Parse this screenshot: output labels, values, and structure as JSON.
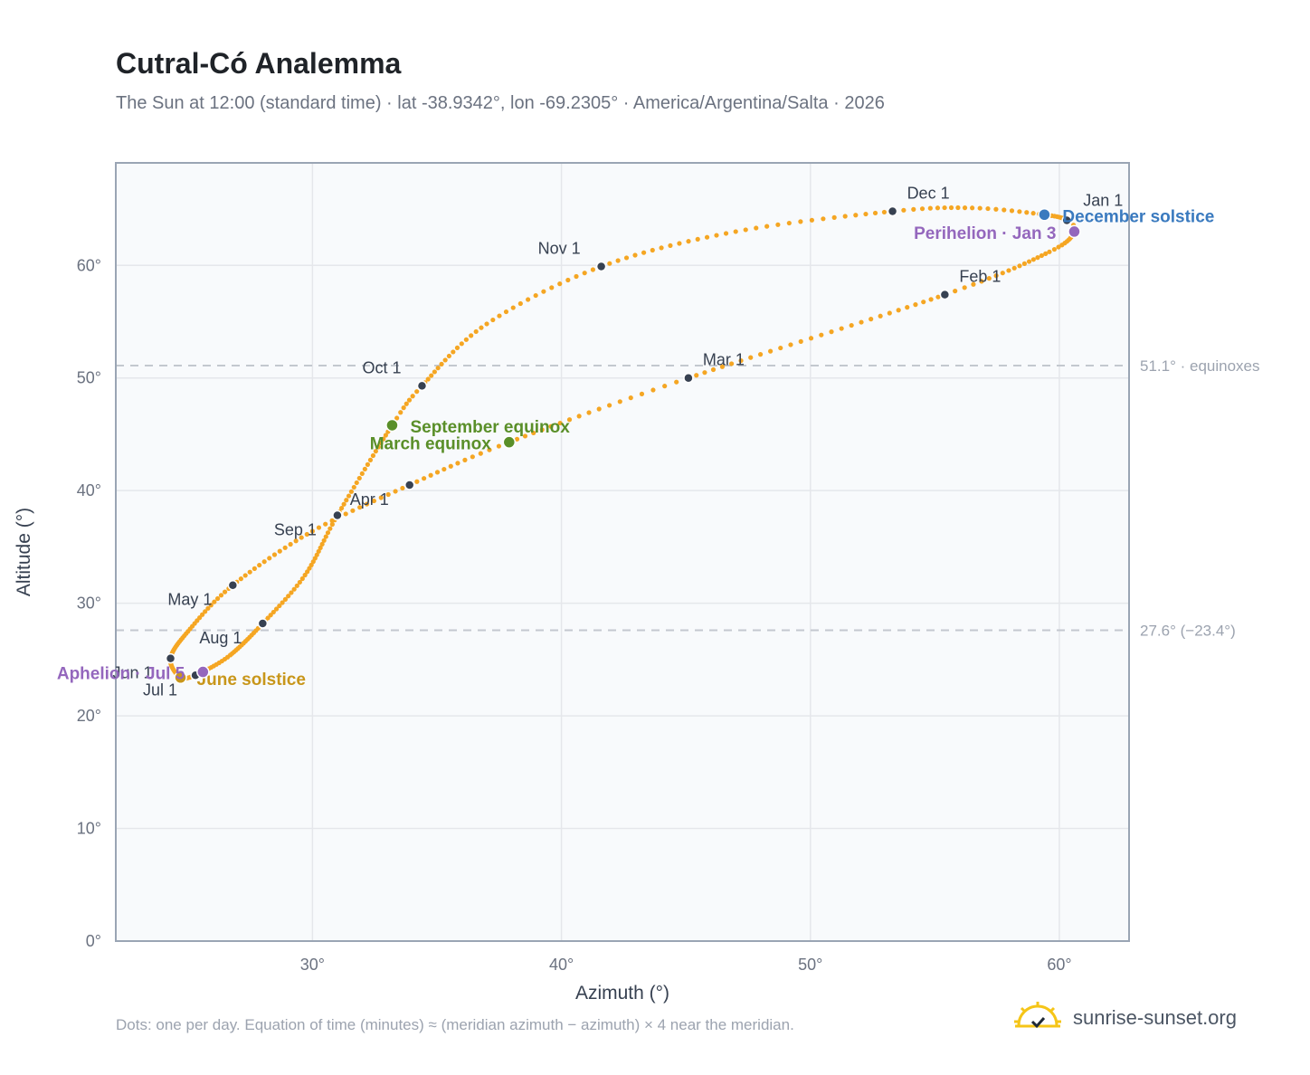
{
  "header": {
    "title": "Cutral-Có Analemma",
    "subtitle": "The Sun at 12:00 (standard time) · lat -38.9342°, lon -69.2305° · America/Argentina/Salta · 2026"
  },
  "footer": {
    "note": "Dots: one per day. Equation of time (minutes) ≈ (meridian azimuth − azimuth) × 4 near the meridian.",
    "brand": "sunrise-sunset.org",
    "brand_icon": "sun-horizon-check-icon"
  },
  "colors": {
    "path": "#f5a623",
    "month_marker": "#374151",
    "equinox": "#5a8f29",
    "december_solstice": "#3a7abf",
    "june_solstice": "#c8961a",
    "apsis": "#9467bd",
    "plot_bg": "#f8fafc",
    "grid": "#e5e7eb",
    "reference_line": "#c3c8cf"
  },
  "chart_data": {
    "type": "scatter",
    "title": "Cutral-Có Analemma",
    "xlabel": "Azimuth (°)",
    "ylabel": "Altitude (°)",
    "xlim": [
      22.1,
      62.8
    ],
    "ylim": [
      0,
      69.1
    ],
    "x_ticks": [
      30,
      40,
      50,
      60
    ],
    "x_tick_labels": [
      "30°",
      "40°",
      "50°",
      "60°"
    ],
    "y_ticks": [
      0,
      10,
      20,
      30,
      40,
      50,
      60
    ],
    "y_tick_labels": [
      "0°",
      "10°",
      "20°",
      "30°",
      "40°",
      "50°",
      "60°"
    ],
    "grid": true,
    "legend": "none",
    "reference_lines": [
      {
        "y": 51.1,
        "label": "51.1° · equinoxes"
      },
      {
        "y": 27.6,
        "label": "27.6° (−23.4°)"
      }
    ],
    "path_anchors": [
      {
        "day": 1,
        "az": 60.3,
        "alt": 64.0
      },
      {
        "day": 3,
        "az": 60.6,
        "alt": 63.0
      },
      {
        "day": 15,
        "az": 59.6,
        "alt": 61.2
      },
      {
        "day": 32,
        "az": 55.4,
        "alt": 57.4
      },
      {
        "day": 60,
        "az": 45.1,
        "alt": 50.0
      },
      {
        "day": 78,
        "az": 37.9,
        "alt": 44.3
      },
      {
        "day": 91,
        "az": 33.9,
        "alt": 40.5
      },
      {
        "day": 105,
        "az": 30.0,
        "alt": 36.4
      },
      {
        "day": 121,
        "az": 26.8,
        "alt": 31.6
      },
      {
        "day": 136,
        "az": 25.0,
        "alt": 27.5
      },
      {
        "day": 152,
        "az": 24.3,
        "alt": 25.1
      },
      {
        "day": 172,
        "az": 24.7,
        "alt": 23.4
      },
      {
        "day": 182,
        "az": 25.3,
        "alt": 23.6
      },
      {
        "day": 186,
        "az": 25.6,
        "alt": 23.9
      },
      {
        "day": 197,
        "az": 26.7,
        "alt": 25.4
      },
      {
        "day": 213,
        "az": 28.0,
        "alt": 28.2
      },
      {
        "day": 228,
        "az": 29.7,
        "alt": 32.5
      },
      {
        "day": 244,
        "az": 31.0,
        "alt": 37.8
      },
      {
        "day": 266,
        "az": 33.2,
        "alt": 45.8
      },
      {
        "day": 274,
        "az": 34.4,
        "alt": 49.3
      },
      {
        "day": 290,
        "az": 37.0,
        "alt": 54.8
      },
      {
        "day": 305,
        "az": 41.6,
        "alt": 59.9
      },
      {
        "day": 320,
        "az": 47.0,
        "alt": 63.0
      },
      {
        "day": 335,
        "az": 53.3,
        "alt": 64.8
      },
      {
        "day": 345,
        "az": 56.5,
        "alt": 65.1
      },
      {
        "day": 355,
        "az": 59.4,
        "alt": 64.5
      },
      {
        "day": 366,
        "az": 60.3,
        "alt": 64.0
      }
    ],
    "month_markers": [
      {
        "label": "Jan 1",
        "az": 60.3,
        "alt": 64.0,
        "dx": 18,
        "dy": -16
      },
      {
        "label": "Feb 1",
        "az": 55.4,
        "alt": 57.4,
        "dx": 16,
        "dy": -14
      },
      {
        "label": "Mar 1",
        "az": 45.1,
        "alt": 50.0,
        "dx": 16,
        "dy": -14
      },
      {
        "label": "Apr 1",
        "az": 33.9,
        "alt": 40.5,
        "dx": -66,
        "dy": 22
      },
      {
        "label": "May 1",
        "az": 26.8,
        "alt": 31.6,
        "dx": -72,
        "dy": 22
      },
      {
        "label": "Jun 1",
        "az": 24.3,
        "alt": 25.1,
        "dx": -64,
        "dy": 22
      },
      {
        "label": "Jul 1",
        "az": 25.3,
        "alt": 23.6,
        "dx": -58,
        "dy": 22
      },
      {
        "label": "Aug 1",
        "az": 28.0,
        "alt": 28.2,
        "dx": -70,
        "dy": 22
      },
      {
        "label": "Sep 1",
        "az": 31.0,
        "alt": 37.8,
        "dx": -70,
        "dy": 22
      },
      {
        "label": "Oct 1",
        "az": 34.4,
        "alt": 49.3,
        "dx": -66,
        "dy": -14
      },
      {
        "label": "Nov 1",
        "az": 41.6,
        "alt": 59.9,
        "dx": -70,
        "dy": -14
      },
      {
        "label": "Dec 1",
        "az": 53.3,
        "alt": 64.8,
        "dx": 16,
        "dy": -14
      }
    ],
    "events": [
      {
        "label": "December solstice",
        "kind": "december_solstice",
        "az": 59.4,
        "alt": 64.5,
        "anchor": "start",
        "dx": 20,
        "dy": 8
      },
      {
        "label": "Perihelion · Jan 3",
        "kind": "apsis",
        "az": 60.6,
        "alt": 63.0,
        "anchor": "end",
        "dx": -20,
        "dy": 8
      },
      {
        "label": "September equinox",
        "kind": "equinox",
        "az": 33.2,
        "alt": 45.8,
        "anchor": "start",
        "dx": 20,
        "dy": 8
      },
      {
        "label": "March equinox",
        "kind": "equinox",
        "az": 37.9,
        "alt": 44.3,
        "anchor": "end",
        "dx": -20,
        "dy": 8
      },
      {
        "label": "June solstice",
        "kind": "june_solstice",
        "az": 24.7,
        "alt": 23.4,
        "anchor": "start",
        "dx": 18,
        "dy": 8
      },
      {
        "label": "Aphelion · Jul 5",
        "kind": "apsis",
        "az": 25.6,
        "alt": 23.9,
        "anchor": "end",
        "dx": -20,
        "dy": 8
      }
    ]
  }
}
